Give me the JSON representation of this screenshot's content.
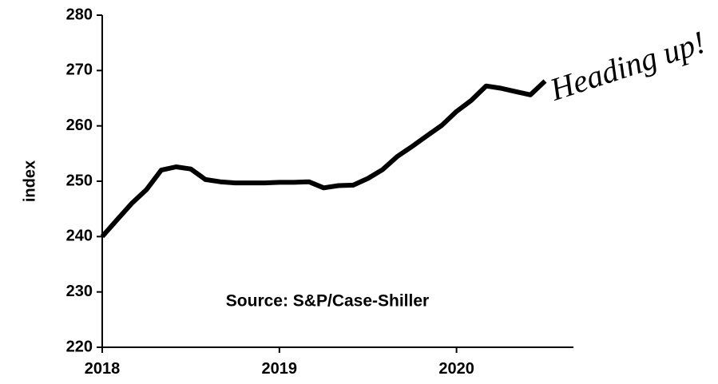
{
  "chart_data": {
    "type": "line",
    "ylabel": "index",
    "annotations": [
      "Source: S&P/Case-Shiller",
      "Heading up!"
    ],
    "x": [
      2018,
      2018.083,
      2018.167,
      2018.25,
      2018.333,
      2018.417,
      2018.5,
      2018.583,
      2018.667,
      2018.75,
      2018.833,
      2018.917,
      2019,
      2019.083,
      2019.167,
      2019.25,
      2019.333,
      2019.417,
      2019.5,
      2019.583,
      2019.667,
      2019.75,
      2019.833,
      2019.917,
      2020,
      2020.083,
      2020.167,
      2020.25,
      2020.333,
      2020.417,
      2020.5
    ],
    "series": [
      {
        "color": "#000000",
        "values": [
          240,
          243,
          246,
          248.5,
          252,
          252.6,
          252.2,
          250.3,
          249.9,
          249.7,
          249.7,
          249.7,
          249.8,
          249.8,
          249.9,
          248.8,
          249.2,
          249.3,
          250.5,
          252.1,
          254.5,
          256.3,
          258.2,
          260.1,
          262.6,
          264.6,
          267.2,
          266.8,
          266.2,
          265.6,
          268.1
        ]
      }
    ],
    "xlim": [
      2018,
      2020.66
    ],
    "xticks": [
      2018,
      2019,
      2020
    ],
    "ylim": [
      220,
      280
    ],
    "yticks": [
      220,
      230,
      240,
      250,
      260,
      270,
      280
    ],
    "grid": false
  }
}
